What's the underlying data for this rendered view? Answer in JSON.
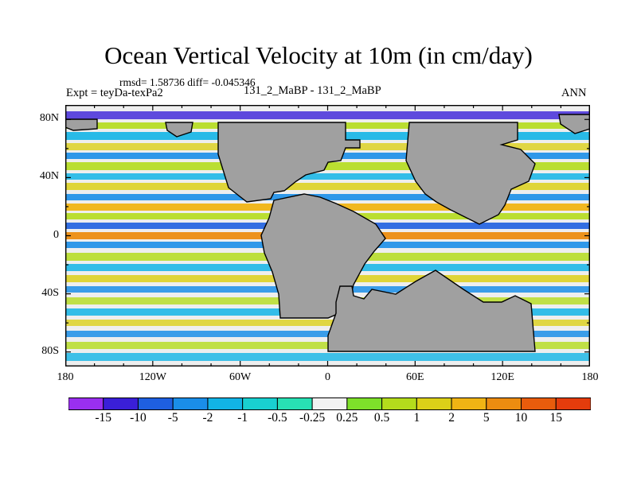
{
  "title": "Ocean Vertical Velocity at 10m (in cm/day)",
  "stats_text": "rmsd= 1.58736 diff= -0.045346",
  "expt_text": "Expt = teyDa-texPa2",
  "runs_text": "131_2_MaBP - 131_2_MaBP",
  "season_text": "ANN",
  "chart_data": {
    "type": "heatmap",
    "title": "Ocean Vertical Velocity at 10m (in cm/day)",
    "units": "cm/day",
    "xlim": [
      -180,
      180
    ],
    "ylim": [
      -90,
      90
    ],
    "x_ticks": [
      {
        "value": -180,
        "label": "180"
      },
      {
        "value": -120,
        "label": "120W"
      },
      {
        "value": -60,
        "label": "60W"
      },
      {
        "value": 0,
        "label": "0"
      },
      {
        "value": 60,
        "label": "60E"
      },
      {
        "value": 120,
        "label": "120E"
      },
      {
        "value": 180,
        "label": "180"
      }
    ],
    "y_ticks": [
      {
        "value": 80,
        "label": "80N"
      },
      {
        "value": 40,
        "label": "40N"
      },
      {
        "value": 0,
        "label": "0"
      },
      {
        "value": -40,
        "label": "40S"
      },
      {
        "value": -80,
        "label": "80S"
      }
    ],
    "contour_levels": [
      "-15",
      "-10",
      "-5",
      "-2",
      "-1",
      "-0.5",
      "-0.25",
      "0.25",
      "0.5",
      "1",
      "2",
      "5",
      "10",
      "15"
    ],
    "colorbar_colors": [
      "#9a2ff0",
      "#3a1fd8",
      "#1e5fe0",
      "#1a8ee8",
      "#12b4e6",
      "#19d0d0",
      "#28e0b4",
      "#f2f2f2",
      "#7ee02a",
      "#b4dc1c",
      "#dcd018",
      "#f0b414",
      "#ec8c10",
      "#e85c0c",
      "#e43c0c"
    ],
    "land_color": "#a0a0a0",
    "ocean_fill": "#eeeeee"
  }
}
